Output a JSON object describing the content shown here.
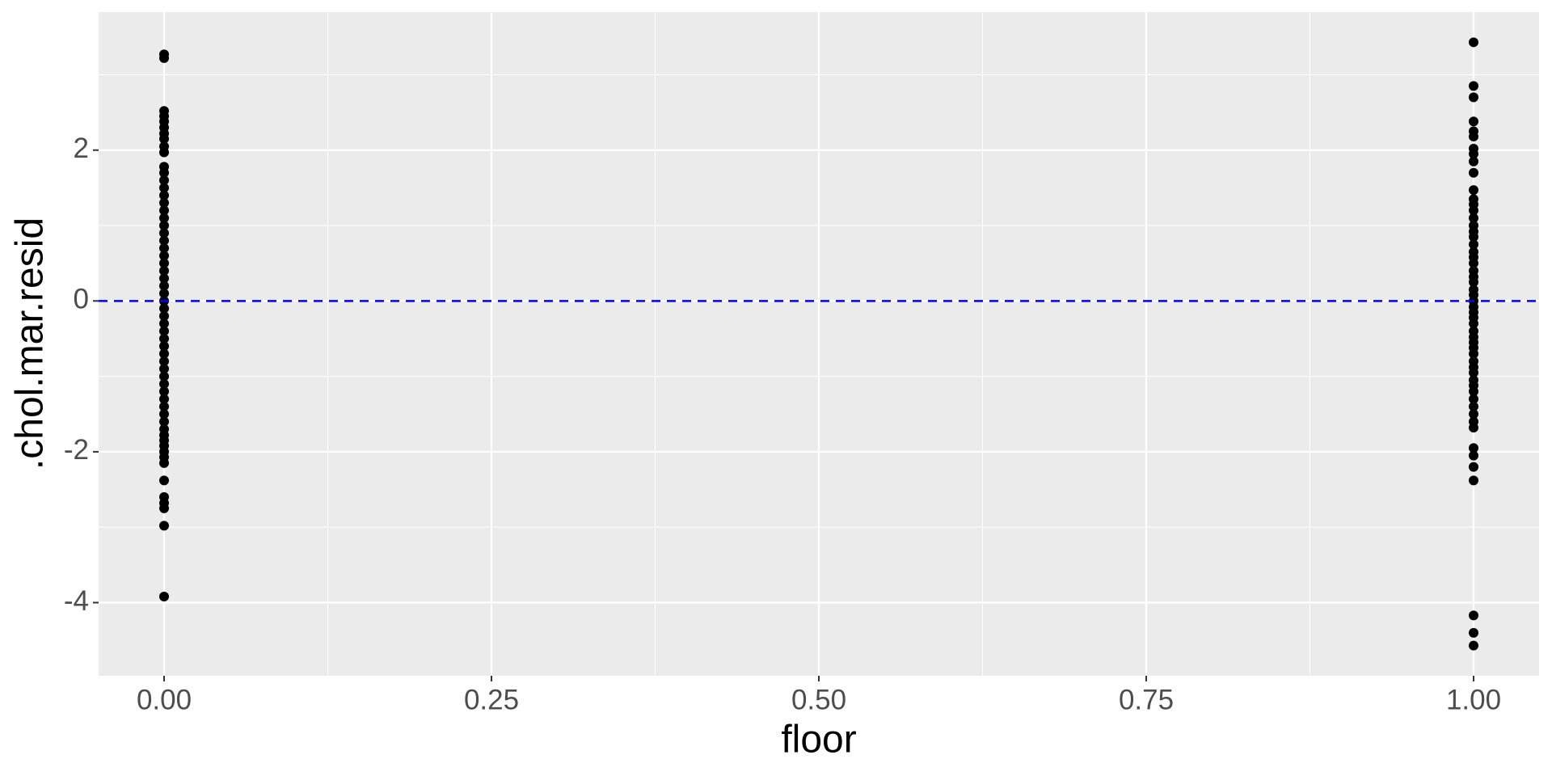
{
  "chart_data": {
    "type": "scatter",
    "x_label": "floor",
    "y_label": ".chol.mar.resid",
    "xlim": [
      -0.05,
      1.05
    ],
    "ylim": [
      -4.97,
      3.83
    ],
    "xticks": [
      {
        "value": 0,
        "label": "0.00"
      },
      {
        "value": 0.25,
        "label": "0.25"
      },
      {
        "value": 0.5,
        "label": "0.50"
      },
      {
        "value": 0.75,
        "label": "0.75"
      },
      {
        "value": 1,
        "label": "1.00"
      }
    ],
    "yticks": [
      -4,
      -2,
      0,
      2
    ],
    "x_minor_ticks": [
      0.125,
      0.375,
      0.625,
      0.875
    ],
    "y_minor_ticks": [
      -3,
      -1,
      1,
      3
    ],
    "grid": true,
    "hline": {
      "value": 0,
      "color": "#0000ff"
    },
    "series": [
      {
        "color": "#000000",
        "x": [
          0,
          0,
          0,
          0,
          0,
          0,
          0,
          0,
          0,
          0,
          0,
          0,
          0,
          0,
          0,
          0,
          0,
          0,
          0,
          0,
          0,
          0,
          0,
          0,
          0,
          0,
          0,
          0,
          0,
          0,
          0,
          0,
          0,
          0,
          0,
          0,
          0,
          0,
          0,
          0,
          0,
          0,
          0,
          0,
          0,
          0,
          0,
          0,
          0,
          0,
          0,
          0,
          0,
          0,
          0,
          0,
          0,
          0
        ],
        "y": [
          3.27,
          3.22,
          2.52,
          2.45,
          2.38,
          2.3,
          2.22,
          2.15,
          2.05,
          1.97,
          1.78,
          1.7,
          1.6,
          1.5,
          1.4,
          1.3,
          1.2,
          1.1,
          1.0,
          0.9,
          0.8,
          0.7,
          0.6,
          0.5,
          0.4,
          0.3,
          0.2,
          0.1,
          0,
          -0.1,
          -0.2,
          -0.3,
          -0.4,
          -0.5,
          -0.6,
          -0.7,
          -0.8,
          -0.9,
          -1.0,
          -1.1,
          -1.2,
          -1.3,
          -1.4,
          -1.5,
          -1.6,
          -1.7,
          -1.78,
          -1.85,
          -1.92,
          -2.0,
          -2.07,
          -2.15,
          -2.38,
          -2.6,
          -2.68,
          -2.75,
          -2.98,
          -3.92
        ]
      },
      {
        "color": "#000000",
        "x": [
          1,
          1,
          1,
          1,
          1,
          1,
          1,
          1,
          1,
          1,
          1,
          1,
          1,
          1,
          1,
          1,
          1,
          1,
          1,
          1,
          1,
          1,
          1,
          1,
          1,
          1,
          1,
          1,
          1,
          1,
          1,
          1,
          1,
          1,
          1,
          1,
          1,
          1,
          1,
          1,
          1,
          1,
          1,
          1,
          1,
          1,
          1,
          1,
          1,
          1,
          1,
          1,
          1,
          1,
          1
        ],
        "y": [
          3.43,
          2.85,
          2.7,
          2.38,
          2.25,
          2.18,
          2.02,
          1.95,
          1.85,
          1.7,
          1.47,
          1.35,
          1.28,
          1.2,
          1.1,
          1.0,
          0.92,
          0.85,
          0.75,
          0.65,
          0.58,
          0.5,
          0.4,
          0.32,
          0.25,
          0.15,
          0.08,
          0,
          -0.08,
          -0.15,
          -0.22,
          -0.3,
          -0.4,
          -0.48,
          -0.55,
          -0.62,
          -0.7,
          -0.8,
          -0.88,
          -0.95,
          -1.05,
          -1.12,
          -1.2,
          -1.3,
          -1.4,
          -1.5,
          -1.6,
          -1.68,
          -1.95,
          -2.05,
          -2.2,
          -2.38,
          -4.17,
          -4.4,
          -4.57
        ]
      }
    ]
  }
}
